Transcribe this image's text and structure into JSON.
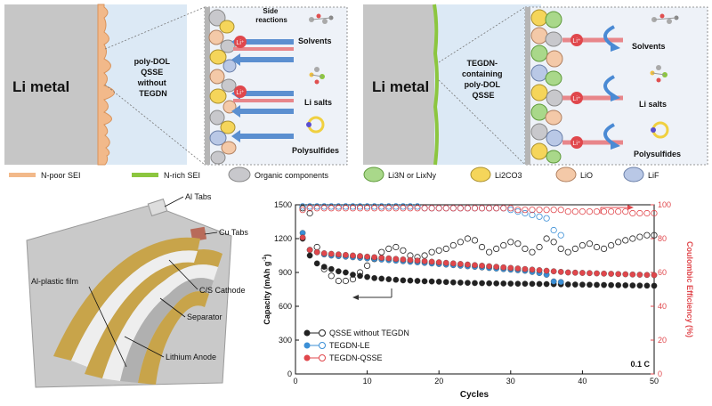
{
  "panel_left": {
    "li_metal": "Li metal",
    "qsse_label_lines": [
      "poly-DOL",
      "QSSE",
      "without",
      "TEGDN"
    ],
    "side_reactions_lines": [
      "Side",
      "reactions"
    ],
    "solvents": "Solvents",
    "li_salts": "Li salts",
    "polysulfides": "Polysulfides"
  },
  "panel_right": {
    "li_metal": "Li metal",
    "qsse_label_lines": [
      "TEGDN-",
      "containing",
      "poly-DOL",
      "QSSE"
    ],
    "solvents": "Solvents",
    "li_salts": "Li salts",
    "polysulfides": "Polysulfides"
  },
  "legend": {
    "n_poor": "N-poor SEI",
    "n_rich": "N-rich SEI",
    "organic": "Organic components",
    "li3n": "Li3N or LixNy",
    "li2co3": "Li2CO3",
    "lio": "LiO",
    "lif": "LiF"
  },
  "colors": {
    "n_poor": "#f2b98a",
    "n_rich": "#8cc63f",
    "organic": "#c8c8cc",
    "li3n": "#a9d88a",
    "li2co3": "#f5d55a",
    "lio": "#f4c9a8",
    "lif": "#b9c8e6",
    "li_metal": "#c6c6c6",
    "electrolyte": "#dce9f5",
    "capacity_le": "#3b8fd6",
    "capacity_qsse": "#e0474c",
    "capacity_no_tegdn": "#222222"
  },
  "cell": {
    "al_tabs": "Al Tabs",
    "cu_tabs": "Cu Tabs",
    "cathode": "C/S Cathode",
    "film": "Al-plastic film",
    "separator": "Separator",
    "anode": "Lithium Anode"
  },
  "chart_data": {
    "type": "scatter",
    "xlabel": "Cycles",
    "ylabel_left": "Capacity (mAh g",
    "ylabel_left_sup": "-1",
    "ylabel_left_end": ")",
    "ylabel_right": "Coulombic Efficiency (%)",
    "xlim": [
      0,
      50
    ],
    "ylim_left": [
      0,
      1500
    ],
    "ylim_right": [
      0,
      100
    ],
    "x_ticks": [
      0,
      10,
      20,
      30,
      40,
      50
    ],
    "y_ticks_left": [
      0,
      300,
      600,
      900,
      1200,
      1500
    ],
    "y_ticks_right": [
      0,
      20,
      40,
      60,
      80,
      100
    ],
    "rate_label": "0.1 C",
    "series": [
      {
        "name": "QSSE without TEGDN",
        "capacity": [
          1200,
          1050,
          980,
          950,
          930,
          910,
          900,
          880,
          870,
          860,
          850,
          845,
          840,
          835,
          830,
          828,
          825,
          822,
          820,
          818,
          815,
          812,
          810,
          808,
          806,
          805,
          804,
          803,
          802,
          801,
          800,
          800,
          799,
          798,
          797,
          796,
          795,
          794,
          793,
          792,
          791,
          790,
          789,
          788,
          787,
          786,
          785,
          784,
          783,
          782
        ],
        "efficiency": [
          98,
          95,
          75,
          62,
          58,
          55,
          55,
          56,
          60,
          64,
          68,
          72,
          74,
          75,
          73,
          70,
          69,
          70,
          72,
          73,
          74,
          76,
          78,
          80,
          79,
          75,
          72,
          74,
          76,
          78,
          77,
          74,
          72,
          75,
          80,
          78,
          74,
          72,
          74,
          76,
          77,
          75,
          74,
          76,
          78,
          79,
          80,
          81,
          82,
          82
        ]
      },
      {
        "name": "TEGDN-LE",
        "capacity": [
          1250,
          1100,
          1080,
          1060,
          1050,
          1045,
          1040,
          1035,
          1030,
          1025,
          1020,
          1015,
          1010,
          1005,
          1000,
          995,
          990,
          985,
          980,
          975,
          970,
          965,
          960,
          955,
          950,
          945,
          940,
          935,
          930,
          925,
          920,
          915,
          905,
          895,
          880,
          820,
          815
        ],
        "efficiency": [
          99,
          99,
          99,
          99,
          99,
          99,
          99,
          99,
          99,
          99,
          99,
          99,
          99,
          99,
          99,
          99,
          99,
          98,
          98,
          98,
          98,
          98,
          98,
          98,
          98,
          98,
          98,
          98,
          98,
          97,
          96,
          95,
          94,
          93,
          92,
          85,
          82
        ]
      },
      {
        "name": "TEGDN-QSSE",
        "capacity": [
          1210,
          1100,
          1080,
          1070,
          1065,
          1060,
          1055,
          1050,
          1045,
          1040,
          1035,
          1030,
          1025,
          1020,
          1015,
          1010,
          1005,
          1000,
          995,
          990,
          985,
          980,
          975,
          970,
          965,
          960,
          955,
          950,
          945,
          940,
          935,
          930,
          925,
          920,
          915,
          910,
          905,
          900,
          898,
          896,
          894,
          892,
          890,
          888,
          886,
          884,
          882,
          880,
          878,
          876
        ],
        "efficiency": [
          97,
          98,
          98,
          98,
          98,
          98,
          98,
          98,
          98,
          98,
          98,
          98,
          98,
          98,
          98,
          98,
          98,
          98,
          98,
          98,
          98,
          98,
          98,
          98,
          98,
          98,
          98,
          98,
          98,
          98,
          97,
          97,
          97,
          97,
          97,
          97,
          97,
          96,
          96,
          96,
          96,
          96,
          96,
          96,
          96,
          96,
          95,
          95,
          95,
          95
        ]
      }
    ]
  }
}
